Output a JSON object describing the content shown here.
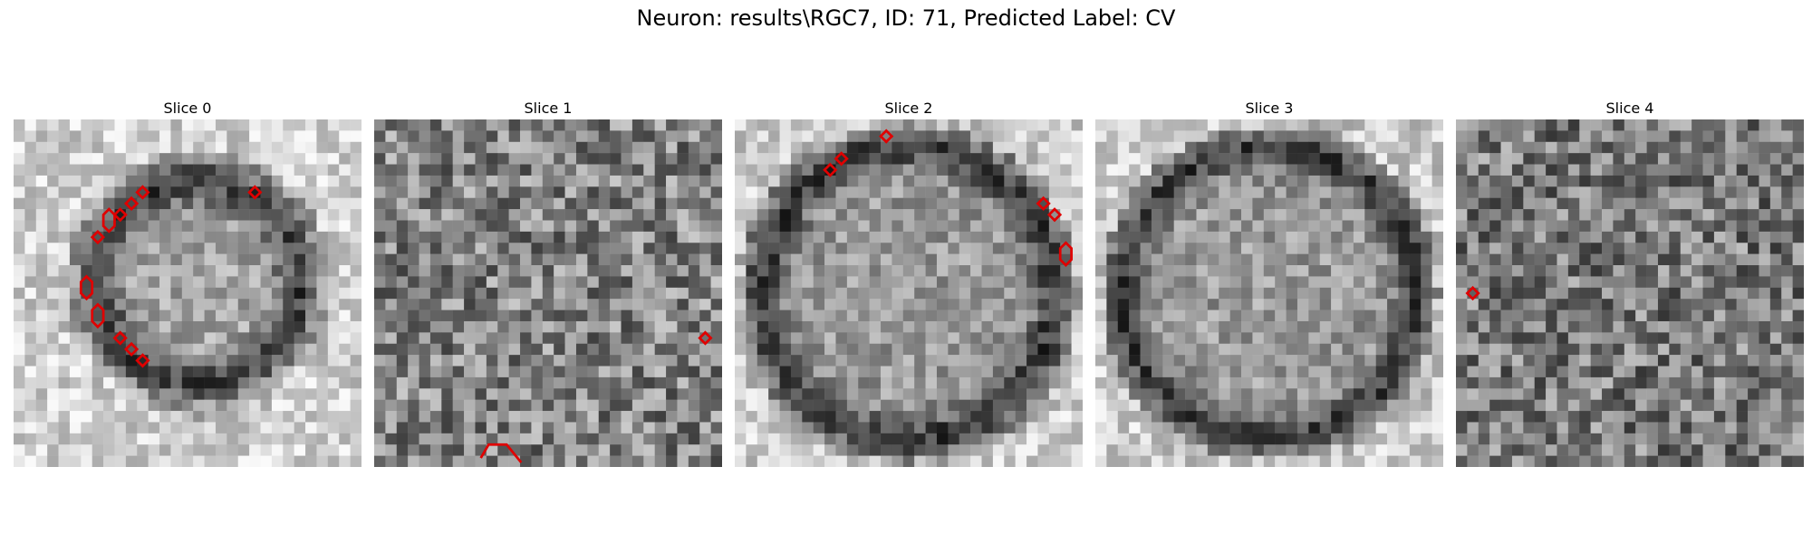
{
  "figure": {
    "title": "Neuron: results\\RGC7, ID: 71, Predicted Label: CV"
  },
  "panels": [
    {
      "title": "Slice 0",
      "contours": [
        {
          "shape": "diamond",
          "cx": 9.5,
          "cy": 19.5
        },
        {
          "shape": "diamond",
          "cx": 10.5,
          "cy": 20.5
        },
        {
          "shape": "diamond",
          "cx": 11.5,
          "cy": 21.5
        },
        {
          "shape": "hex",
          "cx": 7.5,
          "cy": 17.5
        },
        {
          "shape": "hex",
          "cx": 6.5,
          "cy": 15.0
        },
        {
          "shape": "diamond",
          "cx": 7.5,
          "cy": 10.5
        },
        {
          "shape": "hex",
          "cx": 8.5,
          "cy": 9.0
        },
        {
          "shape": "diamond",
          "cx": 9.5,
          "cy": 8.5
        },
        {
          "shape": "diamond",
          "cx": 10.5,
          "cy": 7.5
        },
        {
          "shape": "diamond",
          "cx": 11.5,
          "cy": 6.5
        },
        {
          "shape": "diamond",
          "cx": 21.5,
          "cy": 6.5
        }
      ]
    },
    {
      "title": "Slice 1",
      "contours": [
        {
          "shape": "diamond",
          "cx": 29.5,
          "cy": 19.5
        },
        {
          "shape": "hook",
          "cx": 10.5,
          "cy": 29.0
        }
      ]
    },
    {
      "title": "Slice 2",
      "contours": [
        {
          "shape": "diamond",
          "cx": 13.5,
          "cy": 1.5
        },
        {
          "shape": "diamond",
          "cx": 9.5,
          "cy": 3.5
        },
        {
          "shape": "diamond",
          "cx": 8.5,
          "cy": 4.5
        },
        {
          "shape": "diamond",
          "cx": 27.5,
          "cy": 7.5
        },
        {
          "shape": "diamond",
          "cx": 28.5,
          "cy": 8.5
        },
        {
          "shape": "hex",
          "cx": 29.5,
          "cy": 12.0
        }
      ]
    },
    {
      "title": "Slice 3",
      "contours": []
    },
    {
      "title": "Slice 4",
      "contours": [
        {
          "shape": "diamond",
          "cx": 1.5,
          "cy": 15.5
        }
      ]
    }
  ]
}
